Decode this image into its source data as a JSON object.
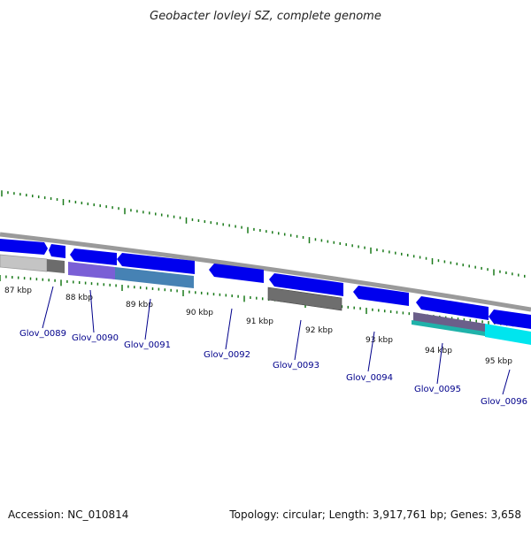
{
  "title": "Geobacter lovleyi SZ, complete genome",
  "footer": {
    "accession": "Accession: NC_010814",
    "summary": "Topology: circular; Length: 3,917,761 bp; Genes: 3,658"
  },
  "colors": {
    "backbone": "#9a9a9a",
    "tick": "#1a7a1a",
    "feature_blue": "#0000ee",
    "gene_label": "#00008b"
  },
  "kbp_labels": [
    "87 kbp",
    "88 kbp",
    "89 kbp",
    "90 kbp",
    "91 kbp",
    "92 kbp",
    "93 kbp",
    "94 kbp",
    "95 kbp"
  ],
  "genes": [
    {
      "id": "Glov_0089"
    },
    {
      "id": "Glov_0090"
    },
    {
      "id": "Glov_0091"
    },
    {
      "id": "Glov_0092"
    },
    {
      "id": "Glov_0093"
    },
    {
      "id": "Glov_0094"
    },
    {
      "id": "Glov_0095"
    },
    {
      "id": "Glov_0096"
    }
  ]
}
